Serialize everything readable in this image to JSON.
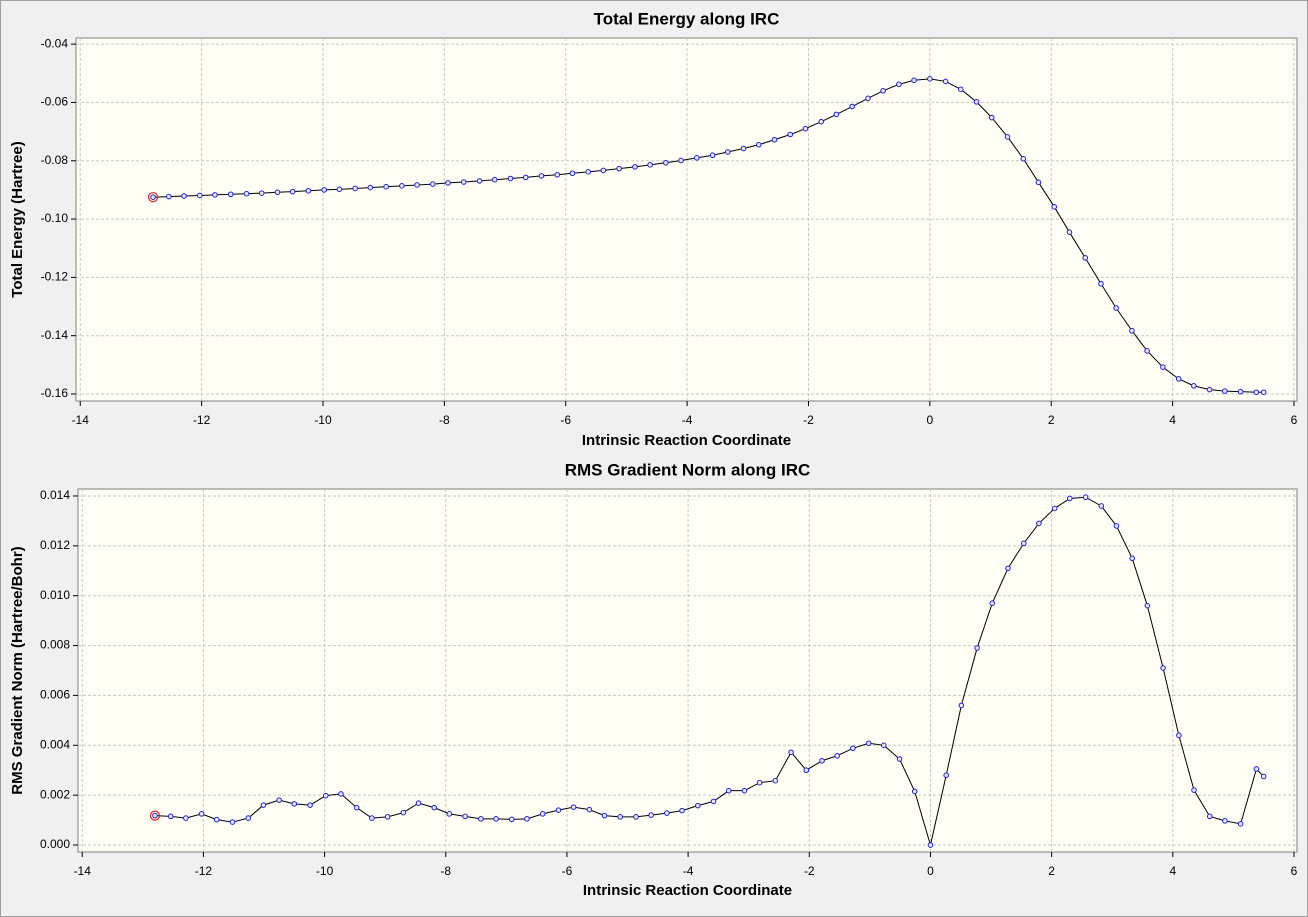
{
  "chart_data": [
    {
      "type": "line",
      "title": "Total Energy along IRC",
      "xlabel": "Intrinsic Reaction Coordinate",
      "ylabel": "Total Energy (Hartree)",
      "x": [
        -12.8,
        -12.54,
        -12.29,
        -12.03,
        -11.78,
        -11.52,
        -11.26,
        -11.01,
        -10.75,
        -10.5,
        -10.24,
        -9.98,
        -9.73,
        -9.47,
        -9.22,
        -8.96,
        -8.7,
        -8.45,
        -8.19,
        -7.94,
        -7.68,
        -7.42,
        -7.17,
        -6.91,
        -6.66,
        -6.4,
        -6.14,
        -5.89,
        -5.63,
        -5.38,
        -5.12,
        -4.86,
        -4.61,
        -4.35,
        -4.1,
        -3.84,
        -3.58,
        -3.33,
        -3.07,
        -2.82,
        -2.56,
        -2.3,
        -2.05,
        -1.79,
        -1.54,
        -1.28,
        -1.02,
        -0.77,
        -0.51,
        -0.26,
        0,
        0.26,
        0.51,
        0.77,
        1.02,
        1.28,
        1.54,
        1.79,
        2.05,
        2.3,
        2.56,
        2.82,
        3.07,
        3.33,
        3.58,
        3.84,
        4.1,
        4.35,
        4.61,
        4.86,
        5.12,
        5.38,
        5.5
      ],
      "values": [
        -0.0925,
        -0.0923,
        -0.0921,
        -0.0919,
        -0.0917,
        -0.0915,
        -0.0913,
        -0.0911,
        -0.0908,
        -0.0906,
        -0.0903,
        -0.09,
        -0.0898,
        -0.0895,
        -0.0892,
        -0.0889,
        -0.0886,
        -0.0883,
        -0.088,
        -0.0876,
        -0.0873,
        -0.0869,
        -0.0865,
        -0.0861,
        -0.0857,
        -0.0852,
        -0.0848,
        -0.0843,
        -0.0838,
        -0.0833,
        -0.0827,
        -0.0821,
        -0.0814,
        -0.0807,
        -0.0799,
        -0.079,
        -0.0781,
        -0.077,
        -0.0758,
        -0.0745,
        -0.0728,
        -0.071,
        -0.069,
        -0.0666,
        -0.0641,
        -0.0614,
        -0.0586,
        -0.056,
        -0.0538,
        -0.0524,
        -0.0519,
        -0.0528,
        -0.0555,
        -0.0598,
        -0.0652,
        -0.0718,
        -0.0793,
        -0.0874,
        -0.0958,
        -0.1045,
        -0.1133,
        -0.1222,
        -0.1305,
        -0.1383,
        -0.1452,
        -0.1508,
        -0.1548,
        -0.1572,
        -0.1585,
        -0.159,
        -0.1592,
        -0.1594,
        -0.1594
      ],
      "color": "#000000",
      "marker_color": "#2020e0",
      "highlight_color": "#e02020",
      "xlim": [
        -14.07,
        6.05
      ],
      "xticks": [
        -14,
        -12,
        -10,
        -8,
        -6,
        -4,
        -2,
        0,
        2,
        4,
        6
      ],
      "ylim": [
        -0.1624,
        -0.0379
      ],
      "yticks": [
        -0.16,
        -0.14,
        -0.12,
        {
          "value": -0.1,
          "label": "-0.10"
        },
        -0.08,
        -0.06,
        -0.04
      ],
      "grid": true
    },
    {
      "type": "line",
      "title": "RMS Gradient Norm along IRC",
      "xlabel": "Intrinsic Reaction Coordinate",
      "ylabel": "RMS Gradient Norm (Hartree/Bohr)",
      "x": [
        -12.8,
        -12.54,
        -12.29,
        -12.03,
        -11.78,
        -11.52,
        -11.26,
        -11.01,
        -10.75,
        -10.5,
        -10.24,
        -9.98,
        -9.73,
        -9.47,
        -9.22,
        -8.96,
        -8.7,
        -8.45,
        -8.19,
        -7.94,
        -7.68,
        -7.42,
        -7.17,
        -6.91,
        -6.66,
        -6.4,
        -6.14,
        -5.89,
        -5.63,
        -5.38,
        -5.12,
        -4.86,
        -4.61,
        -4.35,
        -4.1,
        -3.84,
        -3.58,
        -3.33,
        -3.07,
        -2.82,
        -2.56,
        -2.3,
        -2.05,
        -1.79,
        -1.54,
        -1.28,
        -1.02,
        -0.77,
        -0.51,
        -0.26,
        0,
        0.26,
        0.51,
        0.77,
        1.02,
        1.28,
        1.54,
        1.79,
        2.05,
        2.3,
        2.56,
        2.82,
        3.07,
        3.33,
        3.58,
        3.84,
        4.1,
        4.35,
        4.61,
        4.86,
        5.12,
        5.38,
        5.5
      ],
      "values": [
        0.00118,
        0.00115,
        0.00108,
        0.00125,
        0.00102,
        0.00092,
        0.00108,
        0.0016,
        0.0018,
        0.00165,
        0.0016,
        0.00198,
        0.00205,
        0.0015,
        0.00108,
        0.00113,
        0.0013,
        0.00168,
        0.0015,
        0.00125,
        0.00115,
        0.00105,
        0.00105,
        0.00103,
        0.00105,
        0.00125,
        0.0014,
        0.00152,
        0.00142,
        0.00118,
        0.00113,
        0.00113,
        0.0012,
        0.00128,
        0.00138,
        0.00158,
        0.00175,
        0.00218,
        0.00218,
        0.0025,
        0.00258,
        0.00372,
        0.003,
        0.00338,
        0.00358,
        0.00388,
        0.00408,
        0.004,
        0.00345,
        0.00215,
        0,
        0.0028,
        0.0056,
        0.0079,
        0.0097,
        0.0111,
        0.0121,
        0.0129,
        0.0135,
        0.0139,
        0.01395,
        0.0136,
        0.0128,
        0.0115,
        0.0096,
        0.0071,
        0.0044,
        0.0022,
        0.00115,
        0.00097,
        0.00085,
        0.00305,
        0.00275
      ],
      "color": "#000000",
      "marker_color": "#2020e0",
      "highlight_color": "#e02020",
      "xlim": [
        -14.07,
        6.05
      ],
      "xticks": [
        -14,
        -12,
        -10,
        -8,
        -6,
        -4,
        -2,
        0,
        2,
        4,
        6
      ],
      "ylim": [
        -0.00028,
        0.01428
      ],
      "yticks": [
        {
          "value": 0,
          "label": "0.000"
        },
        0.002,
        0.004,
        0.006,
        0.008,
        {
          "value": 0.01,
          "label": "0.010"
        },
        0.012,
        0.014
      ],
      "grid": true
    }
  ]
}
